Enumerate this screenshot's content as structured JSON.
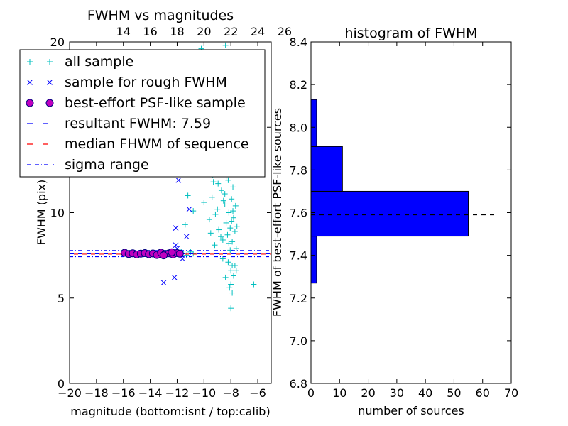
{
  "colors": {
    "all_sample": "#00bfbf",
    "rough_sample": "#0000ff",
    "psf_face": "#bf00bf",
    "psf_edge": "#000080",
    "resultant_line": "#0000ff",
    "median_line": "#ff0000",
    "sigma_line": "#0000ff",
    "hist_bar": "#0000ff",
    "hist_median": "#000000"
  },
  "chart_data": [
    {
      "type": "scatter",
      "title": "FWHM vs magnitudes",
      "xlabel": "magnitude (bottom:isnt / top:calib)",
      "ylabel": "FWHM (pix)",
      "xlim": [
        -20,
        -5
      ],
      "ylim": [
        0,
        20
      ],
      "x_ticks": [
        "−20",
        "−18",
        "−16",
        "−14",
        "−12",
        "−10",
        "−8",
        "−6"
      ],
      "y_ticks": [
        "0",
        "5",
        "10",
        "15",
        "20"
      ],
      "top_axis_ticks": [
        "14",
        "16",
        "18",
        "20",
        "22",
        "24",
        "26"
      ],
      "top_axis_offset": 30,
      "grid": false,
      "legend_position": "top-left",
      "legend": [
        "all sample",
        "sample for rough FWHM",
        "best-effort PSF-like sample",
        "resultant FWHM: 7.59",
        "median FHWM of sequence",
        "sigma range"
      ],
      "resultant_fwhm": 7.59,
      "median_fwhm_sequence": 7.57,
      "sigma_range": [
        7.42,
        7.78
      ],
      "series": [
        {
          "name": "all sample",
          "marker": "+",
          "points": [
            [
              -12.0,
              7.6
            ],
            [
              -11.7,
              7.7
            ],
            [
              -11.3,
              7.5
            ],
            [
              -11.0,
              7.7
            ],
            [
              -10.8,
              7.6
            ],
            [
              -11.4,
              9.3
            ],
            [
              -11.2,
              11.0
            ],
            [
              -10.9,
              12.6
            ],
            [
              -11.1,
              13.1
            ],
            [
              -10.6,
              13.5
            ],
            [
              -10.3,
              12.7
            ],
            [
              -10.0,
              10.6
            ],
            [
              -10.8,
              10.1
            ],
            [
              -10.5,
              14.5
            ],
            [
              -10.2,
              19.6
            ],
            [
              -9.8,
              19.0
            ],
            [
              -10.6,
              19.3
            ],
            [
              -8.4,
              19.8
            ],
            [
              -8.2,
              19.4
            ],
            [
              -9.6,
              9.6
            ],
            [
              -9.5,
              8.8
            ],
            [
              -9.4,
              10.9
            ],
            [
              -9.3,
              11.8
            ],
            [
              -9.2,
              8.1
            ],
            [
              -9.1,
              13.0
            ],
            [
              -9.0,
              10.2
            ],
            [
              -8.9,
              9.0
            ],
            [
              -8.8,
              14.6
            ],
            [
              -8.7,
              11.3
            ],
            [
              -8.6,
              8.4
            ],
            [
              -8.5,
              12.3
            ],
            [
              -8.45,
              10.5
            ],
            [
              -8.4,
              15.2
            ],
            [
              -8.35,
              9.4
            ],
            [
              -8.3,
              13.8
            ],
            [
              -8.25,
              8.7
            ],
            [
              -8.2,
              11.9
            ],
            [
              -8.15,
              10.0
            ],
            [
              -8.1,
              12.8
            ],
            [
              -8.05,
              9.1
            ],
            [
              -8.0,
              15.5
            ],
            [
              -7.95,
              10.8
            ],
            [
              -7.9,
              8.3
            ],
            [
              -7.85,
              11.5
            ],
            [
              -7.8,
              9.7
            ],
            [
              -7.75,
              13.3
            ],
            [
              -7.7,
              8.9
            ],
            [
              -7.65,
              10.4
            ],
            [
              -7.6,
              7.9
            ],
            [
              -7.55,
              9.2
            ],
            [
              -9.35,
              12.2
            ],
            [
              -9.15,
              9.9
            ],
            [
              -8.95,
              11.7
            ],
            [
              -8.75,
              8.6
            ],
            [
              -8.55,
              10.7
            ],
            [
              -8.35,
              12.1
            ],
            [
              -8.15,
              8.2
            ],
            [
              -7.95,
              9.5
            ],
            [
              -8.65,
              14.0
            ],
            [
              -8.25,
              13.6
            ],
            [
              -8.05,
              7.8
            ],
            [
              -7.85,
              10.1
            ],
            [
              -8.45,
              11.1
            ],
            [
              -8.85,
              12.5
            ],
            [
              -9.05,
              13.4
            ],
            [
              -8.5,
              16.2
            ],
            [
              -8.1,
              14.8
            ],
            [
              -8.3,
              17.0
            ],
            [
              -8.6,
              7.3
            ],
            [
              -8.2,
              7.1
            ],
            [
              -7.9,
              6.9
            ],
            [
              -8.0,
              6.6
            ],
            [
              -7.8,
              6.3
            ],
            [
              -7.7,
              6.9
            ],
            [
              -8.4,
              6.2
            ],
            [
              -7.6,
              6.6
            ],
            [
              -8.1,
              5.6
            ],
            [
              -8.0,
              5.8
            ],
            [
              -7.9,
              5.3
            ],
            [
              -8.0,
              4.4
            ],
            [
              -6.3,
              5.8
            ]
          ]
        },
        {
          "name": "sample for rough FWHM",
          "marker": "x",
          "points": [
            [
              -11.9,
              11.9
            ],
            [
              -11.4,
              12.4
            ],
            [
              -11.1,
              10.2
            ],
            [
              -12.1,
              9.1
            ],
            [
              -11.3,
              8.6
            ],
            [
              -12.1,
              8.1
            ],
            [
              -12.0,
              7.9
            ],
            [
              -11.6,
              7.3
            ],
            [
              -12.2,
              6.2
            ],
            [
              -13.0,
              5.9
            ],
            [
              -12.5,
              7.6
            ],
            [
              -11.8,
              7.7
            ]
          ]
        },
        {
          "name": "best-effort PSF-like sample",
          "marker": "o",
          "points": [
            [
              -15.9,
              7.65
            ],
            [
              -15.6,
              7.58
            ],
            [
              -15.3,
              7.62
            ],
            [
              -15.0,
              7.55
            ],
            [
              -14.7,
              7.6
            ],
            [
              -14.4,
              7.63
            ],
            [
              -14.1,
              7.57
            ],
            [
              -13.8,
              7.61
            ],
            [
              -13.5,
              7.52
            ],
            [
              -13.2,
              7.66
            ],
            [
              -12.9,
              7.58
            ],
            [
              -12.6,
              7.62
            ],
            [
              -12.3,
              7.55
            ],
            [
              -12.0,
              7.63
            ],
            [
              -11.8,
              7.6
            ],
            [
              -13.0,
              7.5
            ],
            [
              -12.4,
              7.68
            ]
          ]
        }
      ]
    },
    {
      "type": "bar",
      "orientation": "horizontal",
      "title": "histogram of FWHM",
      "xlabel": "number of sources",
      "ylabel": "FWHM of best-effort PSF-like sources",
      "xlim": [
        0,
        70
      ],
      "ylim": [
        6.8,
        8.4
      ],
      "x_ticks": [
        "0",
        "10",
        "20",
        "30",
        "40",
        "50",
        "60",
        "70"
      ],
      "y_ticks": [
        "6.8",
        "7.0",
        "7.2",
        "7.4",
        "7.6",
        "7.8",
        "8.0",
        "8.2",
        "8.4"
      ],
      "bins": [
        {
          "y0": 7.27,
          "y1": 7.49,
          "count": 2
        },
        {
          "y0": 7.49,
          "y1": 7.7,
          "count": 55
        },
        {
          "y0": 7.7,
          "y1": 7.91,
          "count": 11
        },
        {
          "y0": 7.91,
          "y1": 8.13,
          "count": 2
        }
      ],
      "median_line": {
        "y": 7.59,
        "x_range": [
          0,
          65
        ]
      }
    }
  ]
}
